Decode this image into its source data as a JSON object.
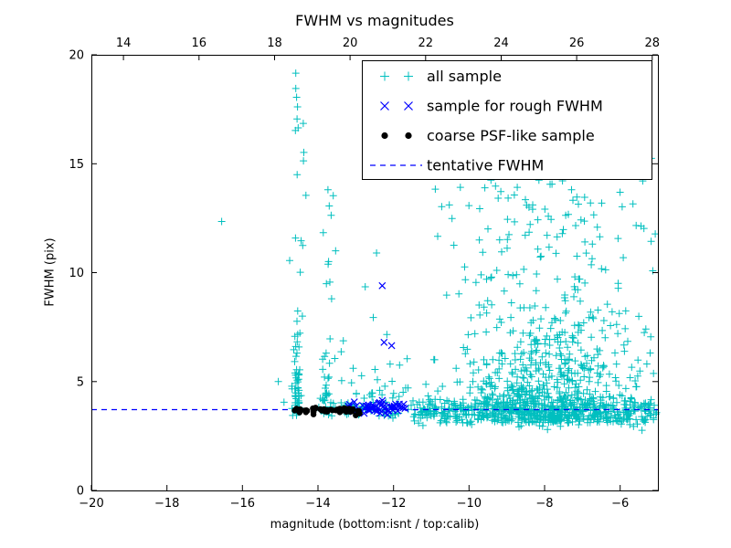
{
  "window": {
    "background": "#ffffff"
  },
  "chart_data": {
    "type": "scatter",
    "title": "FWHM vs magnitudes",
    "xlabel": "magnitude (bottom:isnt / top:calib)",
    "ylabel": "FWHM (pix)",
    "xlim": [
      -20,
      -5
    ],
    "ylim": [
      0,
      20
    ],
    "xticks": [
      -20,
      -18,
      -16,
      -14,
      -12,
      -10,
      -8,
      -6
    ],
    "yticks": [
      0,
      5,
      10,
      15,
      20
    ],
    "top_xlim": [
      13.15,
      28.15
    ],
    "top_xticks": [
      14,
      16,
      18,
      20,
      22,
      24,
      26,
      28
    ],
    "grid": false,
    "tentative_fwhm_y": 3.71,
    "colors": {
      "all_sample": "#00bfbf",
      "rough_fwhm": "#0000ff",
      "psf_sample": "#000000",
      "tentative_line": "#0000ff",
      "axes": "#000000"
    },
    "legend": {
      "position": "upper right",
      "entries": [
        {
          "label": "all sample",
          "marker": "plus",
          "color": "#00bfbf"
        },
        {
          "label": "sample for rough FWHM",
          "marker": "x",
          "color": "#0000ff"
        },
        {
          "label": "coarse PSF-like sample",
          "marker": "dot",
          "color": "#000000"
        },
        {
          "label": "tentative FWHM",
          "marker": "dashed-line",
          "color": "#0000ff"
        }
      ]
    },
    "series": [
      {
        "name": "all sample",
        "marker": "plus",
        "color": "#00bfbf",
        "seed": 42,
        "clusters": [
          {
            "n": 60,
            "x": {
              "dist": "gauss",
              "mean": -14.55,
              "sd": 0.07,
              "min": -14.75,
              "max": -14.35
            },
            "y": {
              "dist": "exp",
              "min": 3.4,
              "scale": 1.6,
              "max": 12
            }
          },
          {
            "n": 16,
            "x": {
              "dist": "gauss",
              "mean": -14.5,
              "sd": 0.1,
              "min": -14.75,
              "max": -14.2
            },
            "y": {
              "dist": "uniform",
              "min": 8,
              "max": 19.9
            }
          },
          {
            "n": 38,
            "x": {
              "dist": "gauss",
              "mean": -13.75,
              "sd": 0.09,
              "min": -14.0,
              "max": -13.5
            },
            "y": {
              "dist": "exp",
              "min": 3.4,
              "scale": 1.3,
              "max": 9
            }
          },
          {
            "n": 10,
            "x": {
              "dist": "gauss",
              "mean": -13.7,
              "sd": 0.1,
              "min": -13.95,
              "max": -13.45
            },
            "y": {
              "dist": "uniform",
              "min": 9,
              "max": 14.8
            }
          },
          {
            "n": 50,
            "x": {
              "dist": "uniform",
              "min": -13.45,
              "max": -11.6
            },
            "y": {
              "dist": "exp",
              "min": 3.4,
              "scale": 1.5,
              "max": 11
            }
          },
          {
            "n": 700,
            "x": {
              "dist": "gauss",
              "mean": -7.9,
              "sd": 1.15,
              "min": -11.3,
              "max": -5.02
            },
            "y": {
              "dist": "exp",
              "min": 3.1,
              "scale": 2.3,
              "max": 15.5
            }
          },
          {
            "n": 70,
            "x": {
              "dist": "uniform",
              "min": -10.9,
              "max": -5.05
            },
            "y": {
              "dist": "uniform",
              "min": 9.5,
              "max": 15.3
            }
          },
          {
            "n": 430,
            "x": {
              "dist": "uniform",
              "min": -11.6,
              "max": -5.02
            },
            "y": {
              "dist": "gauss",
              "mean": 3.65,
              "sd": 0.32,
              "min": 2.65,
              "max": 4.8
            }
          },
          {
            "n": 30,
            "x": {
              "dist": "uniform",
              "min": -13.3,
              "max": -11.6
            },
            "y": {
              "dist": "gauss",
              "mean": 3.7,
              "sd": 0.15,
              "min": 3.3,
              "max": 4.2
            }
          }
        ],
        "points": [
          [
            -16.55,
            12.35
          ],
          [
            -15.05,
            5.0
          ],
          [
            -14.9,
            4.05
          ],
          [
            -12.45,
            10.9
          ],
          [
            -12.75,
            9.35
          ]
        ]
      },
      {
        "name": "sample for rough FWHM",
        "marker": "x",
        "color": "#0000ff",
        "seed": 7,
        "clusters": [
          {
            "n": 55,
            "x": {
              "dist": "uniform",
              "min": -13.2,
              "max": -11.68
            },
            "y": {
              "dist": "gauss",
              "mean": 3.78,
              "sd": 0.14,
              "min": 3.4,
              "max": 4.5
            }
          }
        ],
        "points": [
          [
            -12.3,
            9.4
          ],
          [
            -12.25,
            6.8
          ],
          [
            -12.05,
            6.65
          ]
        ]
      },
      {
        "name": "coarse PSF-like sample",
        "marker": "dot",
        "color": "#000000",
        "seed": 3,
        "clusters": [
          {
            "n": 50,
            "x": {
              "dist": "uniform",
              "min": -14.62,
              "max": -12.88
            },
            "y": {
              "dist": "gauss",
              "mean": 3.68,
              "sd": 0.06,
              "min": 3.45,
              "max": 3.85
            }
          }
        ],
        "points": [
          [
            -13.0,
            3.45
          ]
        ]
      }
    ]
  }
}
